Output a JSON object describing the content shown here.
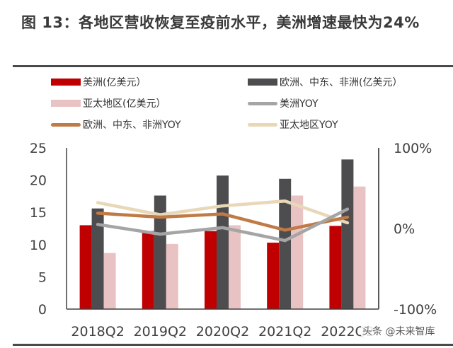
{
  "title": "图 13：各地区营收恢复至疫前水平，美洲增速最快为24%",
  "watermark": "头条 @未来智库",
  "chart_data": {
    "type": "bar",
    "title": "图 13：各地区营收恢复至疫前水平，美洲增速最快为24%",
    "categories": [
      "2018Q2",
      "2019Q2",
      "2020Q2",
      "2021Q2",
      "2022Q2"
    ],
    "xlabel": "",
    "ylabel": "",
    "y_left": {
      "ylim": [
        0,
        25
      ],
      "ticks": [
        "0",
        "5",
        "10",
        "15",
        "20",
        "25"
      ],
      "tick_values": [
        0,
        5,
        10,
        15,
        20,
        25
      ]
    },
    "y_right": {
      "ylim": [
        -1.0,
        1.0
      ],
      "ticks": [
        "-100%",
        "0%",
        "100%"
      ],
      "tick_values": [
        -1.0,
        0,
        1.0
      ]
    },
    "grid": false,
    "legend_position": "top",
    "bar_series": [
      {
        "name": "美洲(亿美元）",
        "color": "#C00000",
        "axis": "left",
        "values": [
          13.0,
          12.1,
          12.1,
          10.3,
          12.9
        ]
      },
      {
        "name": "欧洲、中东、非洲(亿美元）",
        "color": "#4D4D4F",
        "axis": "left",
        "values": [
          15.6,
          17.6,
          20.7,
          20.2,
          23.2
        ]
      },
      {
        "name": "亚太地区(亿美元）",
        "color": "#E9C3C4",
        "axis": "left",
        "values": [
          8.7,
          10.1,
          13.0,
          17.6,
          19.0
        ]
      }
    ],
    "line_series": [
      {
        "name": "美洲YOY",
        "color": "#A5A5A5",
        "axis": "right",
        "values": [
          0.05,
          -0.07,
          0.01,
          -0.15,
          0.24
        ]
      },
      {
        "name": "欧洲、中东、非洲YOY",
        "color": "#C07A45",
        "axis": "right",
        "values": [
          0.19,
          0.14,
          0.18,
          -0.02,
          0.14
        ]
      },
      {
        "name": "亚太地区YOY",
        "color": "#E8D8B8",
        "axis": "right",
        "values": [
          0.32,
          0.17,
          0.28,
          0.34,
          0.07
        ]
      }
    ]
  },
  "legend": [
    {
      "label": "美洲(亿美元）",
      "kind": "bar",
      "color": "#C00000"
    },
    {
      "label": "欧洲、中东、非洲(亿美元）",
      "kind": "bar",
      "color": "#4D4D4F"
    },
    {
      "label": "亚太地区(亿美元）",
      "kind": "bar",
      "color": "#E9C3C4"
    },
    {
      "label": "美洲YOY",
      "kind": "line",
      "color": "#A5A5A5"
    },
    {
      "label": "欧洲、中东、非洲YOY",
      "kind": "line",
      "color": "#C07A45"
    },
    {
      "label": "亚太地区YOY",
      "kind": "line",
      "color": "#E8D8B8"
    }
  ]
}
